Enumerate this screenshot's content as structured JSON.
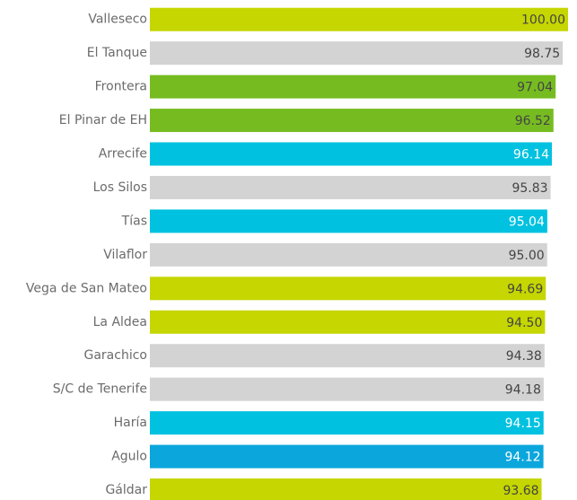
{
  "chart_data": {
    "type": "bar",
    "orientation": "horizontal",
    "categories": [
      "Valleseco",
      "El Tanque",
      "Frontera",
      "El Pinar de EH",
      "Arrecife",
      "Los Silos",
      "Tías",
      "Vilaflor",
      "Vega de San Mateo",
      "La Aldea",
      "Garachico",
      "S/C de Tenerife",
      "Haría",
      "Agulo",
      "Gáldar"
    ],
    "values": [
      100,
      98.75,
      97.04,
      96.52,
      96.14,
      95.83,
      95.04,
      95,
      94.69,
      94.5,
      94.38,
      94.18,
      94.15,
      94.12,
      93.68
    ],
    "value_labels": [
      "100.00",
      "98.75",
      "97.04",
      "96.52",
      "96.14",
      "95.83",
      "95.04",
      "95.00",
      "94.69",
      "94.50",
      "94.38",
      "94.18",
      "94.15",
      "94.12",
      "93.68"
    ],
    "colors": [
      "#c5d600",
      "#d3d3d3",
      "#76bc21",
      "#76bc21",
      "#00c1e0",
      "#d3d3d3",
      "#00c1e0",
      "#d3d3d3",
      "#c5d600",
      "#c5d600",
      "#d3d3d3",
      "#d3d3d3",
      "#00c1e0",
      "#0aa6dc",
      "#c5d600"
    ],
    "xlim": [
      0,
      100
    ]
  }
}
